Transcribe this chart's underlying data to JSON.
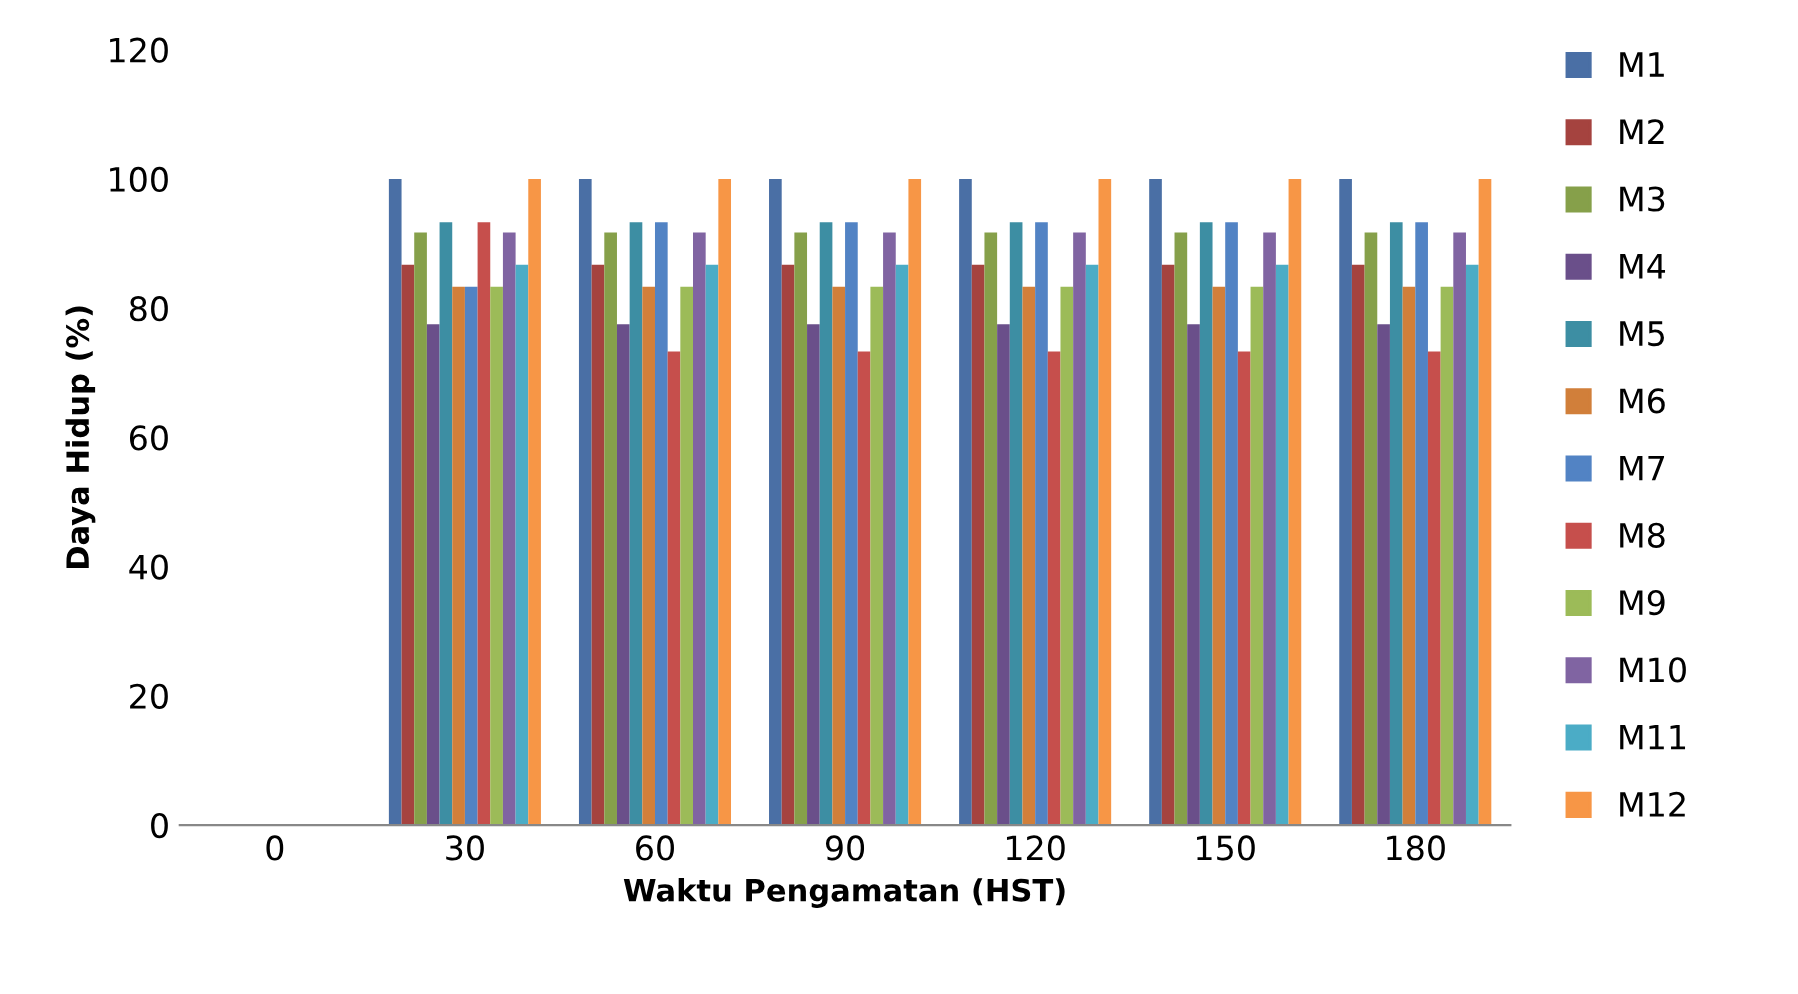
{
  "chart_data": {
    "type": "bar",
    "xlabel": "Waktu Pengamatan (HST)",
    "ylabel": "Daya Hidup (%)",
    "categories": [
      "0",
      "30",
      "60",
      "90",
      "120",
      "150",
      "180"
    ],
    "ylim": [
      0,
      120
    ],
    "yticks": [
      0,
      20,
      40,
      60,
      80,
      100,
      120
    ],
    "grid": false,
    "legend": "right",
    "series": [
      {
        "name": "M1",
        "color": "#4a6fa5",
        "values": [
          0,
          100,
          100,
          100,
          100,
          100,
          100
        ]
      },
      {
        "name": "M2",
        "color": "#a5433f",
        "values": [
          0,
          86.7,
          86.7,
          86.7,
          86.7,
          86.7,
          86.7
        ]
      },
      {
        "name": "M3",
        "color": "#86a04a",
        "values": [
          0,
          91.7,
          91.7,
          91.7,
          91.7,
          91.7,
          91.7
        ]
      },
      {
        "name": "M4",
        "color": "#6a4f8a",
        "values": [
          0,
          77.5,
          77.5,
          77.5,
          77.5,
          77.5,
          77.5
        ]
      },
      {
        "name": "M5",
        "color": "#3d8ea3",
        "values": [
          0,
          93.3,
          93.3,
          93.3,
          93.3,
          93.3,
          93.3
        ]
      },
      {
        "name": "M6",
        "color": "#d17f3a",
        "values": [
          0,
          83.3,
          83.3,
          83.3,
          83.3,
          83.3,
          83.3
        ]
      },
      {
        "name": "M7",
        "color": "#5283c4",
        "values": [
          0,
          83.3,
          93.3,
          93.3,
          93.3,
          93.3,
          93.3
        ]
      },
      {
        "name": "M8",
        "color": "#c64f4c",
        "values": [
          0,
          93.3,
          73.3,
          73.3,
          73.3,
          73.3,
          73.3
        ]
      },
      {
        "name": "M9",
        "color": "#9cbb58",
        "values": [
          0,
          83.3,
          83.3,
          83.3,
          83.3,
          83.3,
          83.3
        ]
      },
      {
        "name": "M10",
        "color": "#8064a2",
        "values": [
          0,
          91.7,
          91.7,
          91.7,
          91.7,
          91.7,
          91.7
        ]
      },
      {
        "name": "M11",
        "color": "#4bacc6",
        "values": [
          0,
          86.7,
          86.7,
          86.7,
          86.7,
          86.7,
          86.7
        ]
      },
      {
        "name": "M12",
        "color": "#f79646",
        "values": [
          0,
          100,
          100,
          100,
          100,
          100,
          100
        ]
      }
    ]
  }
}
